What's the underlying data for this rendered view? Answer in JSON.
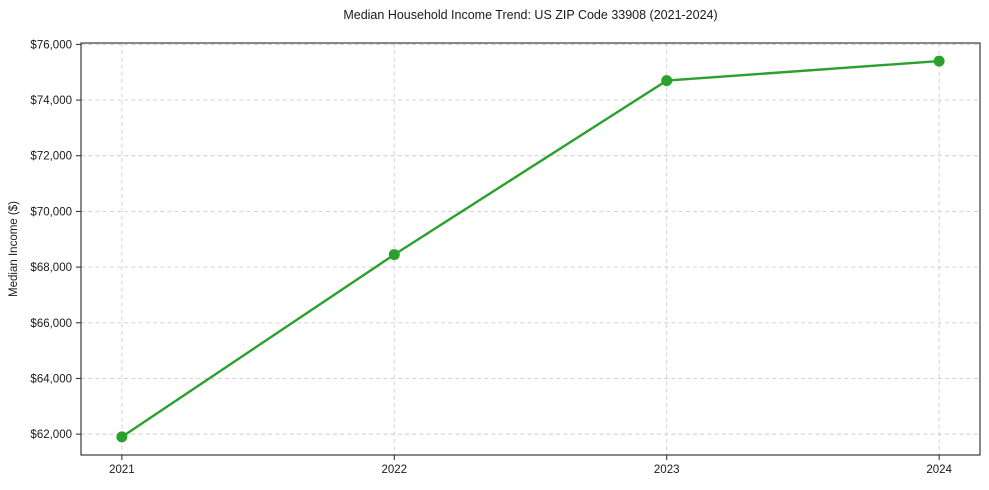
{
  "colors": {
    "line": "#2ca02c",
    "marker": "#2ca02c",
    "grid": "#cdcdcd",
    "spine": "#262626",
    "tick": "#262626",
    "text": "#1a1a1a",
    "background": "#ffffff"
  },
  "chart_data": {
    "type": "line",
    "title": "Median Household Income Trend: US ZIP Code 33908 (2021-2024)",
    "xlabel": "",
    "ylabel": "Median Income ($)",
    "series_name": "Median Household Income",
    "x": [
      2021,
      2022,
      2023,
      2024
    ],
    "x_tick_labels": [
      "2021",
      "2022",
      "2023",
      "2024"
    ],
    "values": [
      61900,
      68450,
      74700,
      75400
    ],
    "y_ticks": [
      62000,
      64000,
      66000,
      68000,
      70000,
      72000,
      74000,
      76000
    ],
    "y_tick_labels": [
      "$62,000",
      "$64,000",
      "$66,000",
      "$68,000",
      "$70,000",
      "$72,000",
      "$74,000",
      "$76,000"
    ],
    "xlim": [
      2020.85,
      2024.15
    ],
    "ylim": [
      61250,
      76050
    ],
    "grid": true,
    "grid_style": "dashed",
    "legend": false,
    "marker": "circle"
  }
}
